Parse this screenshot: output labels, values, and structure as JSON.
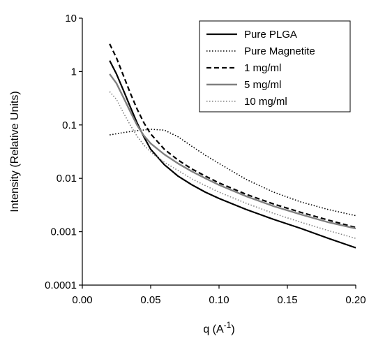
{
  "chart_data": {
    "type": "line",
    "xlabel": "q (A",
    "xlabel_sup": "-1",
    "xlabel_close": ")",
    "ylabel": "Intensity (Relative Units)",
    "xlim": [
      0,
      0.2
    ],
    "ylim": [
      0.0001,
      10
    ],
    "yscale": "log",
    "grid": false,
    "legend_position": "top-right",
    "x_ticks": [
      {
        "value": 0.0,
        "label": "0.00"
      },
      {
        "value": 0.05,
        "label": "0.05"
      },
      {
        "value": 0.1,
        "label": "0.10"
      },
      {
        "value": 0.15,
        "label": "0.15"
      },
      {
        "value": 0.2,
        "label": "0.20"
      }
    ],
    "y_ticks": [
      {
        "value": 0.0001,
        "label": "0.0001"
      },
      {
        "value": 0.001,
        "label": "0.001"
      },
      {
        "value": 0.01,
        "label": "0.01"
      },
      {
        "value": 0.1,
        "label": "0.1"
      },
      {
        "value": 1,
        "label": "1"
      },
      {
        "value": 10,
        "label": "10"
      }
    ],
    "series": [
      {
        "name": "Pure PLGA",
        "color": "#000000",
        "dash": "solid",
        "width": 2.2,
        "points": [
          [
            0.02,
            1.6
          ],
          [
            0.025,
            0.9
          ],
          [
            0.03,
            0.45
          ],
          [
            0.035,
            0.22
          ],
          [
            0.04,
            0.11
          ],
          [
            0.045,
            0.06
          ],
          [
            0.05,
            0.035
          ],
          [
            0.06,
            0.018
          ],
          [
            0.07,
            0.011
          ],
          [
            0.08,
            0.0076
          ],
          [
            0.09,
            0.0055
          ],
          [
            0.1,
            0.0042
          ],
          [
            0.12,
            0.0026
          ],
          [
            0.14,
            0.0017
          ],
          [
            0.16,
            0.00115
          ],
          [
            0.18,
            0.00075
          ],
          [
            0.2,
            0.0005
          ]
        ]
      },
      {
        "name": "Pure Magnetite",
        "color": "#000000",
        "dash": "1.5,2.5",
        "width": 1.6,
        "points": [
          [
            0.02,
            0.065
          ],
          [
            0.03,
            0.072
          ],
          [
            0.04,
            0.078
          ],
          [
            0.05,
            0.083
          ],
          [
            0.06,
            0.08
          ],
          [
            0.07,
            0.06
          ],
          [
            0.08,
            0.04
          ],
          [
            0.09,
            0.027
          ],
          [
            0.1,
            0.019
          ],
          [
            0.12,
            0.0095
          ],
          [
            0.14,
            0.0055
          ],
          [
            0.16,
            0.0036
          ],
          [
            0.18,
            0.0026
          ],
          [
            0.2,
            0.002
          ]
        ]
      },
      {
        "name": "1 mg/ml",
        "color": "#000000",
        "dash": "7,4",
        "width": 2.2,
        "points": [
          [
            0.02,
            3.3
          ],
          [
            0.025,
            1.8
          ],
          [
            0.03,
            0.85
          ],
          [
            0.035,
            0.4
          ],
          [
            0.04,
            0.2
          ],
          [
            0.045,
            0.11
          ],
          [
            0.05,
            0.068
          ],
          [
            0.06,
            0.035
          ],
          [
            0.07,
            0.022
          ],
          [
            0.08,
            0.015
          ],
          [
            0.09,
            0.011
          ],
          [
            0.1,
            0.0082
          ],
          [
            0.12,
            0.005
          ],
          [
            0.14,
            0.0033
          ],
          [
            0.16,
            0.0023
          ],
          [
            0.18,
            0.00165
          ],
          [
            0.2,
            0.0012
          ]
        ]
      },
      {
        "name": "5 mg/ml",
        "color": "#808080",
        "dash": "solid",
        "width": 2.4,
        "points": [
          [
            0.02,
            0.9
          ],
          [
            0.025,
            0.6
          ],
          [
            0.03,
            0.33
          ],
          [
            0.035,
            0.18
          ],
          [
            0.04,
            0.1
          ],
          [
            0.045,
            0.063
          ],
          [
            0.05,
            0.045
          ],
          [
            0.06,
            0.028
          ],
          [
            0.07,
            0.019
          ],
          [
            0.08,
            0.0135
          ],
          [
            0.09,
            0.01
          ],
          [
            0.1,
            0.0075
          ],
          [
            0.12,
            0.0046
          ],
          [
            0.14,
            0.003
          ],
          [
            0.16,
            0.0021
          ],
          [
            0.18,
            0.0015
          ],
          [
            0.2,
            0.00115
          ]
        ]
      },
      {
        "name": "10 mg/ml",
        "color": "#808080",
        "dash": "1.5,2.5",
        "width": 1.6,
        "points": [
          [
            0.02,
            0.42
          ],
          [
            0.025,
            0.3
          ],
          [
            0.03,
            0.17
          ],
          [
            0.035,
            0.1
          ],
          [
            0.04,
            0.062
          ],
          [
            0.045,
            0.042
          ],
          [
            0.05,
            0.031
          ],
          [
            0.06,
            0.02
          ],
          [
            0.07,
            0.014
          ],
          [
            0.08,
            0.0098
          ],
          [
            0.09,
            0.0073
          ],
          [
            0.1,
            0.0055
          ],
          [
            0.12,
            0.0034
          ],
          [
            0.14,
            0.0022
          ],
          [
            0.16,
            0.0015
          ],
          [
            0.18,
            0.00105
          ],
          [
            0.2,
            0.00075
          ]
        ]
      }
    ]
  }
}
